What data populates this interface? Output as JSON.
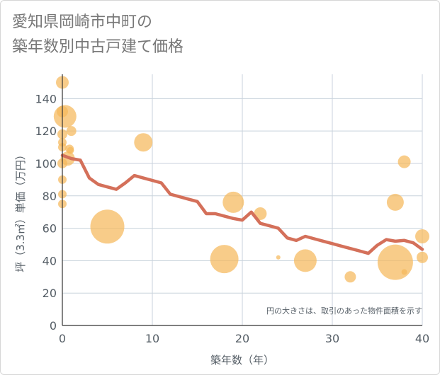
{
  "title_lines": [
    "愛知県岡崎市中町の",
    "築年数別中古戸建て価格"
  ],
  "chart_data": {
    "type": "scatter",
    "xlabel": "築年数（年）",
    "ylabel": "坪（3.3㎡）単価（万円）",
    "xlim": [
      0,
      40
    ],
    "ylim": [
      0,
      155
    ],
    "xticks": [
      0,
      10,
      20,
      30,
      40
    ],
    "yticks": [
      0,
      20,
      40,
      60,
      80,
      100,
      120,
      140
    ],
    "grid": true,
    "annotation": "円の大きさは、取引のあった物件面積を示す",
    "colors": {
      "bubble": "#f5b85c",
      "line": "#d4705a",
      "grid": "#c8d2dc"
    },
    "bubbles": [
      {
        "x": 0,
        "y": 150,
        "size": 9
      },
      {
        "x": 0,
        "y": 132,
        "size": 8
      },
      {
        "x": 0.3,
        "y": 129,
        "size": 16
      },
      {
        "x": 0,
        "y": 118,
        "size": 7
      },
      {
        "x": 1,
        "y": 120,
        "size": 7
      },
      {
        "x": 0,
        "y": 113,
        "size": 6
      },
      {
        "x": 0,
        "y": 110,
        "size": 6
      },
      {
        "x": 0.8,
        "y": 109,
        "size": 6
      },
      {
        "x": 0.9,
        "y": 108,
        "size": 5
      },
      {
        "x": 0.6,
        "y": 103,
        "size": 10
      },
      {
        "x": 0,
        "y": 100,
        "size": 7
      },
      {
        "x": 0,
        "y": 90,
        "size": 6
      },
      {
        "x": 0,
        "y": 81,
        "size": 6
      },
      {
        "x": 0,
        "y": 75,
        "size": 6
      },
      {
        "x": 5,
        "y": 61,
        "size": 24
      },
      {
        "x": 9,
        "y": 113,
        "size": 13
      },
      {
        "x": 18,
        "y": 41,
        "size": 20
      },
      {
        "x": 19,
        "y": 76,
        "size": 15
      },
      {
        "x": 22,
        "y": 69,
        "size": 9
      },
      {
        "x": 24,
        "y": 42,
        "size": 3
      },
      {
        "x": 27,
        "y": 40,
        "size": 16
      },
      {
        "x": 32,
        "y": 30,
        "size": 8
      },
      {
        "x": 37,
        "y": 39,
        "size": 25
      },
      {
        "x": 37,
        "y": 76,
        "size": 12
      },
      {
        "x": 38,
        "y": 101,
        "size": 9
      },
      {
        "x": 38,
        "y": 33,
        "size": 4
      },
      {
        "x": 40,
        "y": 55,
        "size": 10
      },
      {
        "x": 40,
        "y": 42,
        "size": 8
      }
    ],
    "trend": {
      "x": [
        0,
        1,
        2,
        3,
        4,
        5,
        6,
        7,
        8,
        9,
        10,
        11,
        12,
        13,
        14,
        15,
        16,
        17,
        18,
        19,
        20,
        21,
        22,
        23,
        24,
        25,
        26,
        27,
        28,
        29,
        30,
        31,
        32,
        33,
        34,
        35,
        36,
        37,
        38,
        39,
        40
      ],
      "y": [
        105,
        103,
        102,
        91,
        87,
        85.5,
        84,
        88,
        92.5,
        91,
        89.5,
        88,
        81,
        79.5,
        78,
        76.5,
        69,
        69,
        67.5,
        66,
        65,
        70,
        63,
        61.5,
        60,
        54,
        52.5,
        55,
        53.5,
        52,
        50.5,
        49,
        47.5,
        46,
        44.5,
        49.5,
        53,
        52,
        52.5,
        51,
        47
      ]
    }
  }
}
